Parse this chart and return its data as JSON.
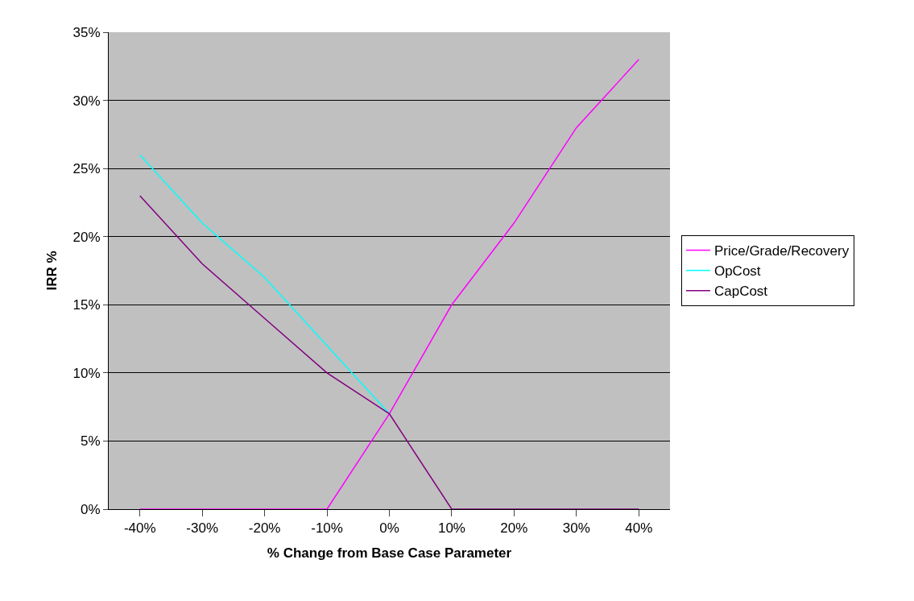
{
  "chart_data": {
    "type": "line",
    "xlabel": "% Change from Base Case Parameter",
    "ylabel": "IRR %",
    "categories": [
      "-40%",
      "-30%",
      "-20%",
      "-10%",
      "0%",
      "10%",
      "20%",
      "30%",
      "40%"
    ],
    "series": [
      {
        "name": "Price/Grade/Recovery",
        "color": "#ff00ff",
        "values": [
          0,
          0,
          0,
          0,
          7,
          15,
          21,
          28,
          33
        ]
      },
      {
        "name": "OpCost",
        "color": "#00ffff",
        "values": [
          26,
          21,
          17,
          12,
          7,
          null,
          null,
          null,
          null
        ]
      },
      {
        "name": "CapCost",
        "color": "#800080",
        "values": [
          23,
          18,
          14,
          10,
          7,
          0,
          0,
          0,
          0
        ]
      }
    ],
    "ylim": [
      0,
      35
    ],
    "yticks": [
      {
        "value": 0,
        "label": "0%"
      },
      {
        "value": 5,
        "label": "5%"
      },
      {
        "value": 10,
        "label": "10%"
      },
      {
        "value": 15,
        "label": "15%"
      },
      {
        "value": 20,
        "label": "20%"
      },
      {
        "value": 25,
        "label": "25%"
      },
      {
        "value": 30,
        "label": "30%"
      },
      {
        "value": 35,
        "label": "35%"
      }
    ],
    "grid": "y",
    "legend": "right",
    "marker": "none",
    "line_style": "solid"
  }
}
